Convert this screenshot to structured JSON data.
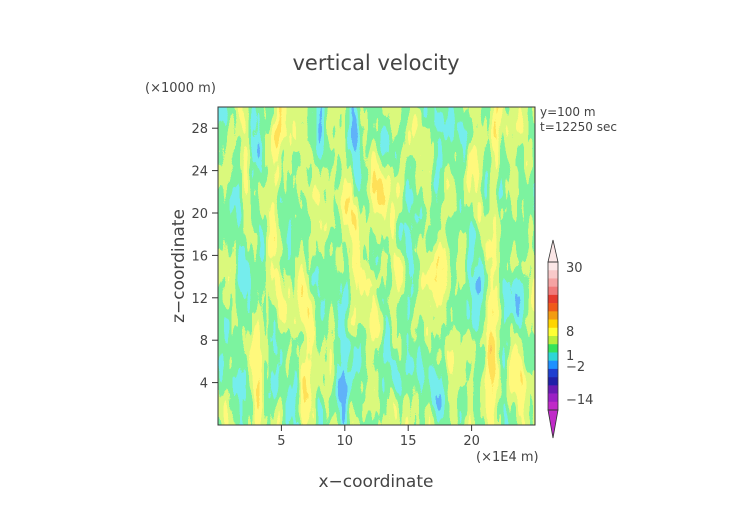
{
  "chart_data": {
    "type": "heatmap",
    "title": "vertical velocity",
    "xlabel": "x−coordinate",
    "ylabel": "z−coordinate",
    "x_unit": "(×1E4 m)",
    "y_unit": "(×1000 m)",
    "annotation_y": "y=100 m",
    "annotation_t": "t=12250 sec",
    "xlim": [
      0,
      25
    ],
    "ylim": [
      0,
      30
    ],
    "x_ticks": [
      5,
      10,
      15,
      20
    ],
    "y_ticks": [
      4,
      8,
      12,
      16,
      20,
      24,
      28
    ],
    "colorbar": {
      "labels": [
        "30",
        "8",
        "1",
        "−2",
        "−14"
      ],
      "colors": [
        "#fbe6e6",
        "#f8c9c9",
        "#f5a3a3",
        "#f07a7a",
        "#e63b2e",
        "#f05a1a",
        "#f39c12",
        "#ffd500",
        "#ffff33",
        "#b8ef3b",
        "#34e35a",
        "#2dd6d6",
        "#1e90ff",
        "#1f3fcf",
        "#2020a8",
        "#6a1ab3",
        "#9b20c4",
        "#c02ac8"
      ]
    }
  }
}
